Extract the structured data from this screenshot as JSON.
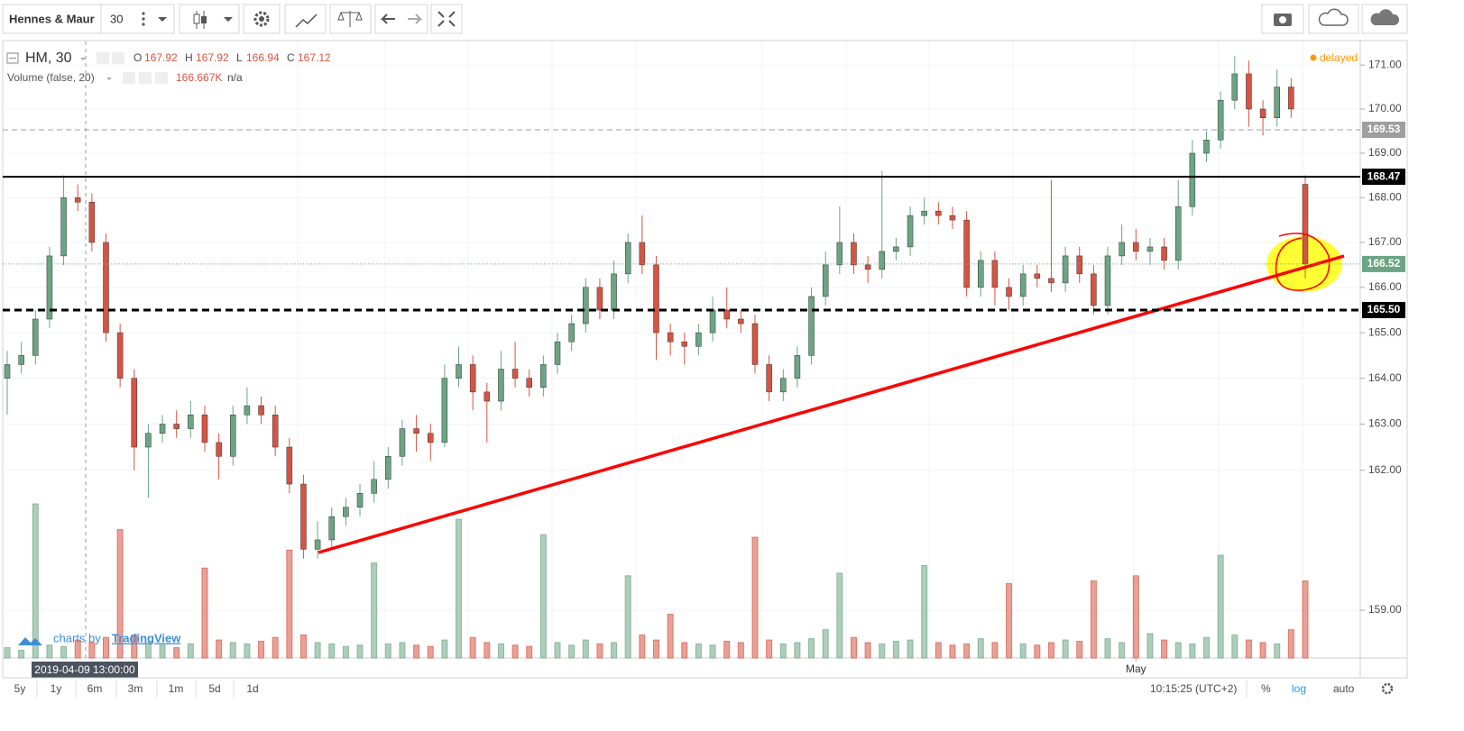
{
  "toolbar": {
    "symbol": "Hennes & Maur",
    "interval": "30"
  },
  "chart_data": {
    "type": "candlestick",
    "symbol": "HM, 30",
    "legend": {
      "o_label": "O",
      "open": 167.92,
      "h_label": "H",
      "high": 167.92,
      "l_label": "L",
      "low": 166.94,
      "c_label": "C",
      "close": 167.12
    },
    "volume_title": "Volume (false, 20)",
    "volume_value": "166.667K",
    "volume_ma": "n/a",
    "status": "delayed",
    "crosshair_time": "2019-04-09 13:00:00",
    "up_color": "#6ba583",
    "down_color": "#d75442",
    "log_scale": true,
    "ylim": [
      157.99,
      171.54
    ],
    "yticks": [
      {
        "value": 171,
        "label": "171.00"
      },
      {
        "value": 170,
        "label": "170.00"
      },
      {
        "value": 169,
        "label": "169.00"
      },
      {
        "value": 168,
        "label": "168.00"
      },
      {
        "value": 167,
        "label": "167.00"
      },
      {
        "value": 166,
        "label": "166.00"
      },
      {
        "value": 165,
        "label": "165.00"
      },
      {
        "value": 164,
        "label": "164.00"
      },
      {
        "value": 163,
        "label": "163.00"
      },
      {
        "value": 162,
        "label": "162.00"
      },
      {
        "value": 159,
        "label": "159.00"
      }
    ],
    "y2lim": [
      0,
      2400
    ],
    "price_lines": [
      {
        "price": 169.53,
        "color": "#9e9e9e",
        "style": "dashed"
      },
      {
        "price": 168.47,
        "color": "#000000",
        "style": "solid"
      },
      {
        "price": 166.52,
        "color": "#6ba583",
        "style": "dotted"
      },
      {
        "price": {
          "value": 165.5,
          "label": "165.50"
        },
        "color": "#000000",
        "style": "bold-dashed"
      }
    ],
    "categories": [
      null,
      null,
      null,
      null,
      null,
      null,
      null,
      null,
      null,
      null,
      null,
      null,
      null,
      null,
      null,
      null,
      null,
      null,
      null,
      null,
      null,
      null,
      null,
      null,
      null,
      null,
      null,
      null,
      null,
      null,
      null,
      null,
      null,
      null,
      null,
      null,
      null,
      null,
      null,
      null,
      null,
      null,
      null,
      null,
      null,
      null,
      null,
      null,
      null,
      null,
      null,
      null,
      null,
      null,
      null,
      null,
      null,
      null,
      null,
      null,
      null,
      null,
      null,
      null,
      null,
      null,
      null,
      null,
      null,
      null,
      null,
      null,
      null,
      null,
      null,
      null,
      null,
      null,
      null,
      null,
      "May",
      null,
      null,
      null,
      null,
      null,
      null,
      null,
      null,
      null,
      null,
      null,
      null
    ],
    "candles": [
      [
        164.0,
        164.6,
        163.2,
        164.3
      ],
      [
        164.3,
        164.8,
        164.1,
        164.5
      ],
      [
        164.5,
        165.5,
        164.3,
        165.3
      ],
      [
        165.3,
        166.9,
        165.1,
        166.7
      ],
      [
        166.7,
        168.5,
        166.5,
        168.0
      ],
      [
        168.0,
        168.3,
        167.7,
        167.9
      ],
      [
        167.9,
        168.1,
        166.8,
        167.0
      ],
      [
        167.0,
        167.2,
        164.8,
        165.0
      ],
      [
        165.0,
        165.2,
        163.8,
        164.0
      ],
      [
        164.0,
        164.2,
        162.0,
        162.5
      ],
      [
        162.5,
        163.0,
        161.4,
        162.8
      ],
      [
        162.8,
        163.2,
        162.6,
        163.0
      ],
      [
        163.0,
        163.3,
        162.7,
        162.9
      ],
      [
        162.9,
        163.5,
        162.7,
        163.2
      ],
      [
        163.2,
        163.4,
        162.4,
        162.6
      ],
      [
        162.6,
        162.8,
        161.8,
        162.3
      ],
      [
        162.3,
        163.4,
        162.1,
        163.2
      ],
      [
        163.2,
        163.8,
        163.0,
        163.4
      ],
      [
        163.4,
        163.6,
        163.0,
        163.2
      ],
      [
        163.2,
        163.4,
        162.3,
        162.5
      ],
      [
        162.5,
        162.7,
        161.5,
        161.7
      ],
      [
        161.7,
        161.9,
        160.1,
        160.3
      ],
      [
        160.3,
        160.9,
        160.1,
        160.5
      ],
      [
        160.5,
        161.2,
        160.3,
        161.0
      ],
      [
        161.0,
        161.4,
        160.8,
        161.2
      ],
      [
        161.2,
        161.7,
        161.0,
        161.5
      ],
      [
        161.5,
        162.2,
        161.3,
        161.8
      ],
      [
        161.8,
        162.5,
        161.6,
        162.3
      ],
      [
        162.3,
        163.1,
        162.1,
        162.9
      ],
      [
        162.9,
        163.2,
        162.4,
        162.8
      ],
      [
        162.8,
        163.0,
        162.2,
        162.6
      ],
      [
        162.6,
        164.3,
        162.5,
        164.0
      ],
      [
        164.0,
        164.7,
        163.8,
        164.3
      ],
      [
        164.3,
        164.5,
        163.3,
        163.7
      ],
      [
        163.7,
        163.9,
        162.6,
        163.5
      ],
      [
        163.5,
        164.6,
        163.3,
        164.2
      ],
      [
        164.2,
        164.8,
        163.8,
        164.0
      ],
      [
        164.0,
        164.2,
        163.6,
        163.8
      ],
      [
        163.8,
        164.5,
        163.6,
        164.3
      ],
      [
        164.3,
        165.0,
        164.1,
        164.8
      ],
      [
        164.8,
        165.4,
        164.6,
        165.2
      ],
      [
        165.2,
        166.2,
        165.0,
        166.0
      ],
      [
        166.0,
        166.2,
        165.3,
        165.5
      ],
      [
        165.5,
        166.6,
        165.3,
        166.3
      ],
      [
        166.3,
        167.2,
        166.1,
        167.0
      ],
      [
        167.0,
        167.6,
        166.3,
        166.5
      ],
      [
        166.5,
        166.7,
        164.4,
        165.0
      ],
      [
        165.0,
        165.2,
        164.5,
        164.8
      ],
      [
        164.8,
        165.0,
        164.3,
        164.7
      ],
      [
        164.7,
        165.2,
        164.5,
        165.0
      ],
      [
        165.0,
        165.8,
        164.8,
        165.5
      ],
      [
        165.5,
        166.0,
        165.1,
        165.3
      ],
      [
        165.3,
        165.5,
        165.0,
        165.2
      ],
      [
        165.2,
        165.4,
        164.1,
        164.3
      ],
      [
        164.3,
        164.5,
        163.5,
        163.7
      ],
      [
        163.7,
        164.2,
        163.5,
        164.0
      ],
      [
        164.0,
        164.7,
        163.8,
        164.5
      ],
      [
        164.5,
        166.0,
        164.3,
        165.8
      ],
      [
        165.8,
        166.8,
        165.6,
        166.5
      ],
      [
        166.5,
        167.8,
        166.3,
        167.0
      ],
      [
        167.0,
        167.2,
        166.3,
        166.5
      ],
      [
        166.5,
        166.7,
        166.1,
        166.4
      ],
      [
        166.4,
        168.6,
        166.2,
        166.8
      ],
      [
        166.8,
        167.1,
        166.6,
        166.9
      ],
      [
        166.9,
        167.8,
        166.7,
        167.6
      ],
      [
        167.6,
        168.0,
        167.4,
        167.7
      ],
      [
        167.7,
        167.9,
        167.4,
        167.6
      ],
      [
        167.6,
        167.8,
        167.3,
        167.5
      ],
      [
        167.5,
        167.7,
        165.8,
        166.0
      ],
      [
        166.0,
        166.8,
        165.8,
        166.6
      ],
      [
        166.6,
        166.8,
        165.6,
        166.0
      ],
      [
        166.0,
        166.2,
        165.5,
        165.8
      ],
      [
        165.8,
        166.5,
        165.6,
        166.3
      ],
      [
        166.3,
        166.5,
        166.0,
        166.2
      ],
      [
        166.2,
        168.4,
        165.9,
        166.1
      ],
      [
        166.1,
        166.9,
        165.9,
        166.7
      ],
      [
        166.7,
        166.9,
        166.1,
        166.3
      ],
      [
        166.3,
        166.5,
        165.4,
        165.6
      ],
      [
        165.6,
        166.9,
        165.4,
        166.7
      ],
      [
        166.7,
        167.4,
        166.5,
        167.0
      ],
      [
        167.0,
        167.3,
        166.6,
        166.8
      ],
      [
        166.8,
        167.1,
        166.5,
        166.9
      ],
      [
        166.9,
        167.1,
        166.4,
        166.6
      ],
      [
        166.6,
        168.4,
        166.4,
        167.8
      ],
      [
        167.8,
        169.3,
        167.6,
        169.0
      ],
      [
        169.0,
        169.5,
        168.8,
        169.3
      ],
      [
        169.3,
        170.4,
        169.1,
        170.2
      ],
      [
        170.2,
        171.2,
        170.0,
        170.8
      ],
      [
        170.8,
        171.1,
        169.6,
        170.0
      ],
      [
        170.0,
        170.2,
        169.4,
        169.8
      ],
      [
        169.8,
        170.9,
        169.6,
        170.5
      ],
      [
        170.5,
        170.7,
        169.8,
        170.0
      ],
      [
        168.3,
        168.5,
        166.2,
        166.52
      ]
    ],
    "volume": [
      40,
      30,
      600,
      50,
      45,
      70,
      60,
      80,
      500,
      90,
      60,
      50,
      40,
      55,
      350,
      70,
      60,
      55,
      65,
      80,
      420,
      90,
      60,
      55,
      45,
      50,
      370,
      55,
      60,
      50,
      45,
      70,
      540,
      80,
      60,
      55,
      50,
      45,
      480,
      60,
      50,
      70,
      55,
      60,
      320,
      90,
      70,
      170,
      60,
      55,
      50,
      65,
      60,
      470,
      70,
      55,
      60,
      75,
      110,
      330,
      80,
      60,
      55,
      65,
      70,
      360,
      60,
      50,
      55,
      75,
      60,
      290,
      55,
      50,
      60,
      70,
      65,
      300,
      75,
      60,
      320,
      95,
      70,
      60,
      55,
      80,
      400,
      90,
      70,
      60,
      55,
      110,
      300
    ]
  },
  "attribution": {
    "prefix": "charts by",
    "brand": "TradingView"
  },
  "footer": {
    "ranges": [
      "5y",
      "1y",
      "6m",
      "3m",
      "1m",
      "5d",
      "1d"
    ],
    "clock": "10:15:25 (UTC+2)",
    "percent": "%",
    "log": "log",
    "auto": "auto"
  }
}
